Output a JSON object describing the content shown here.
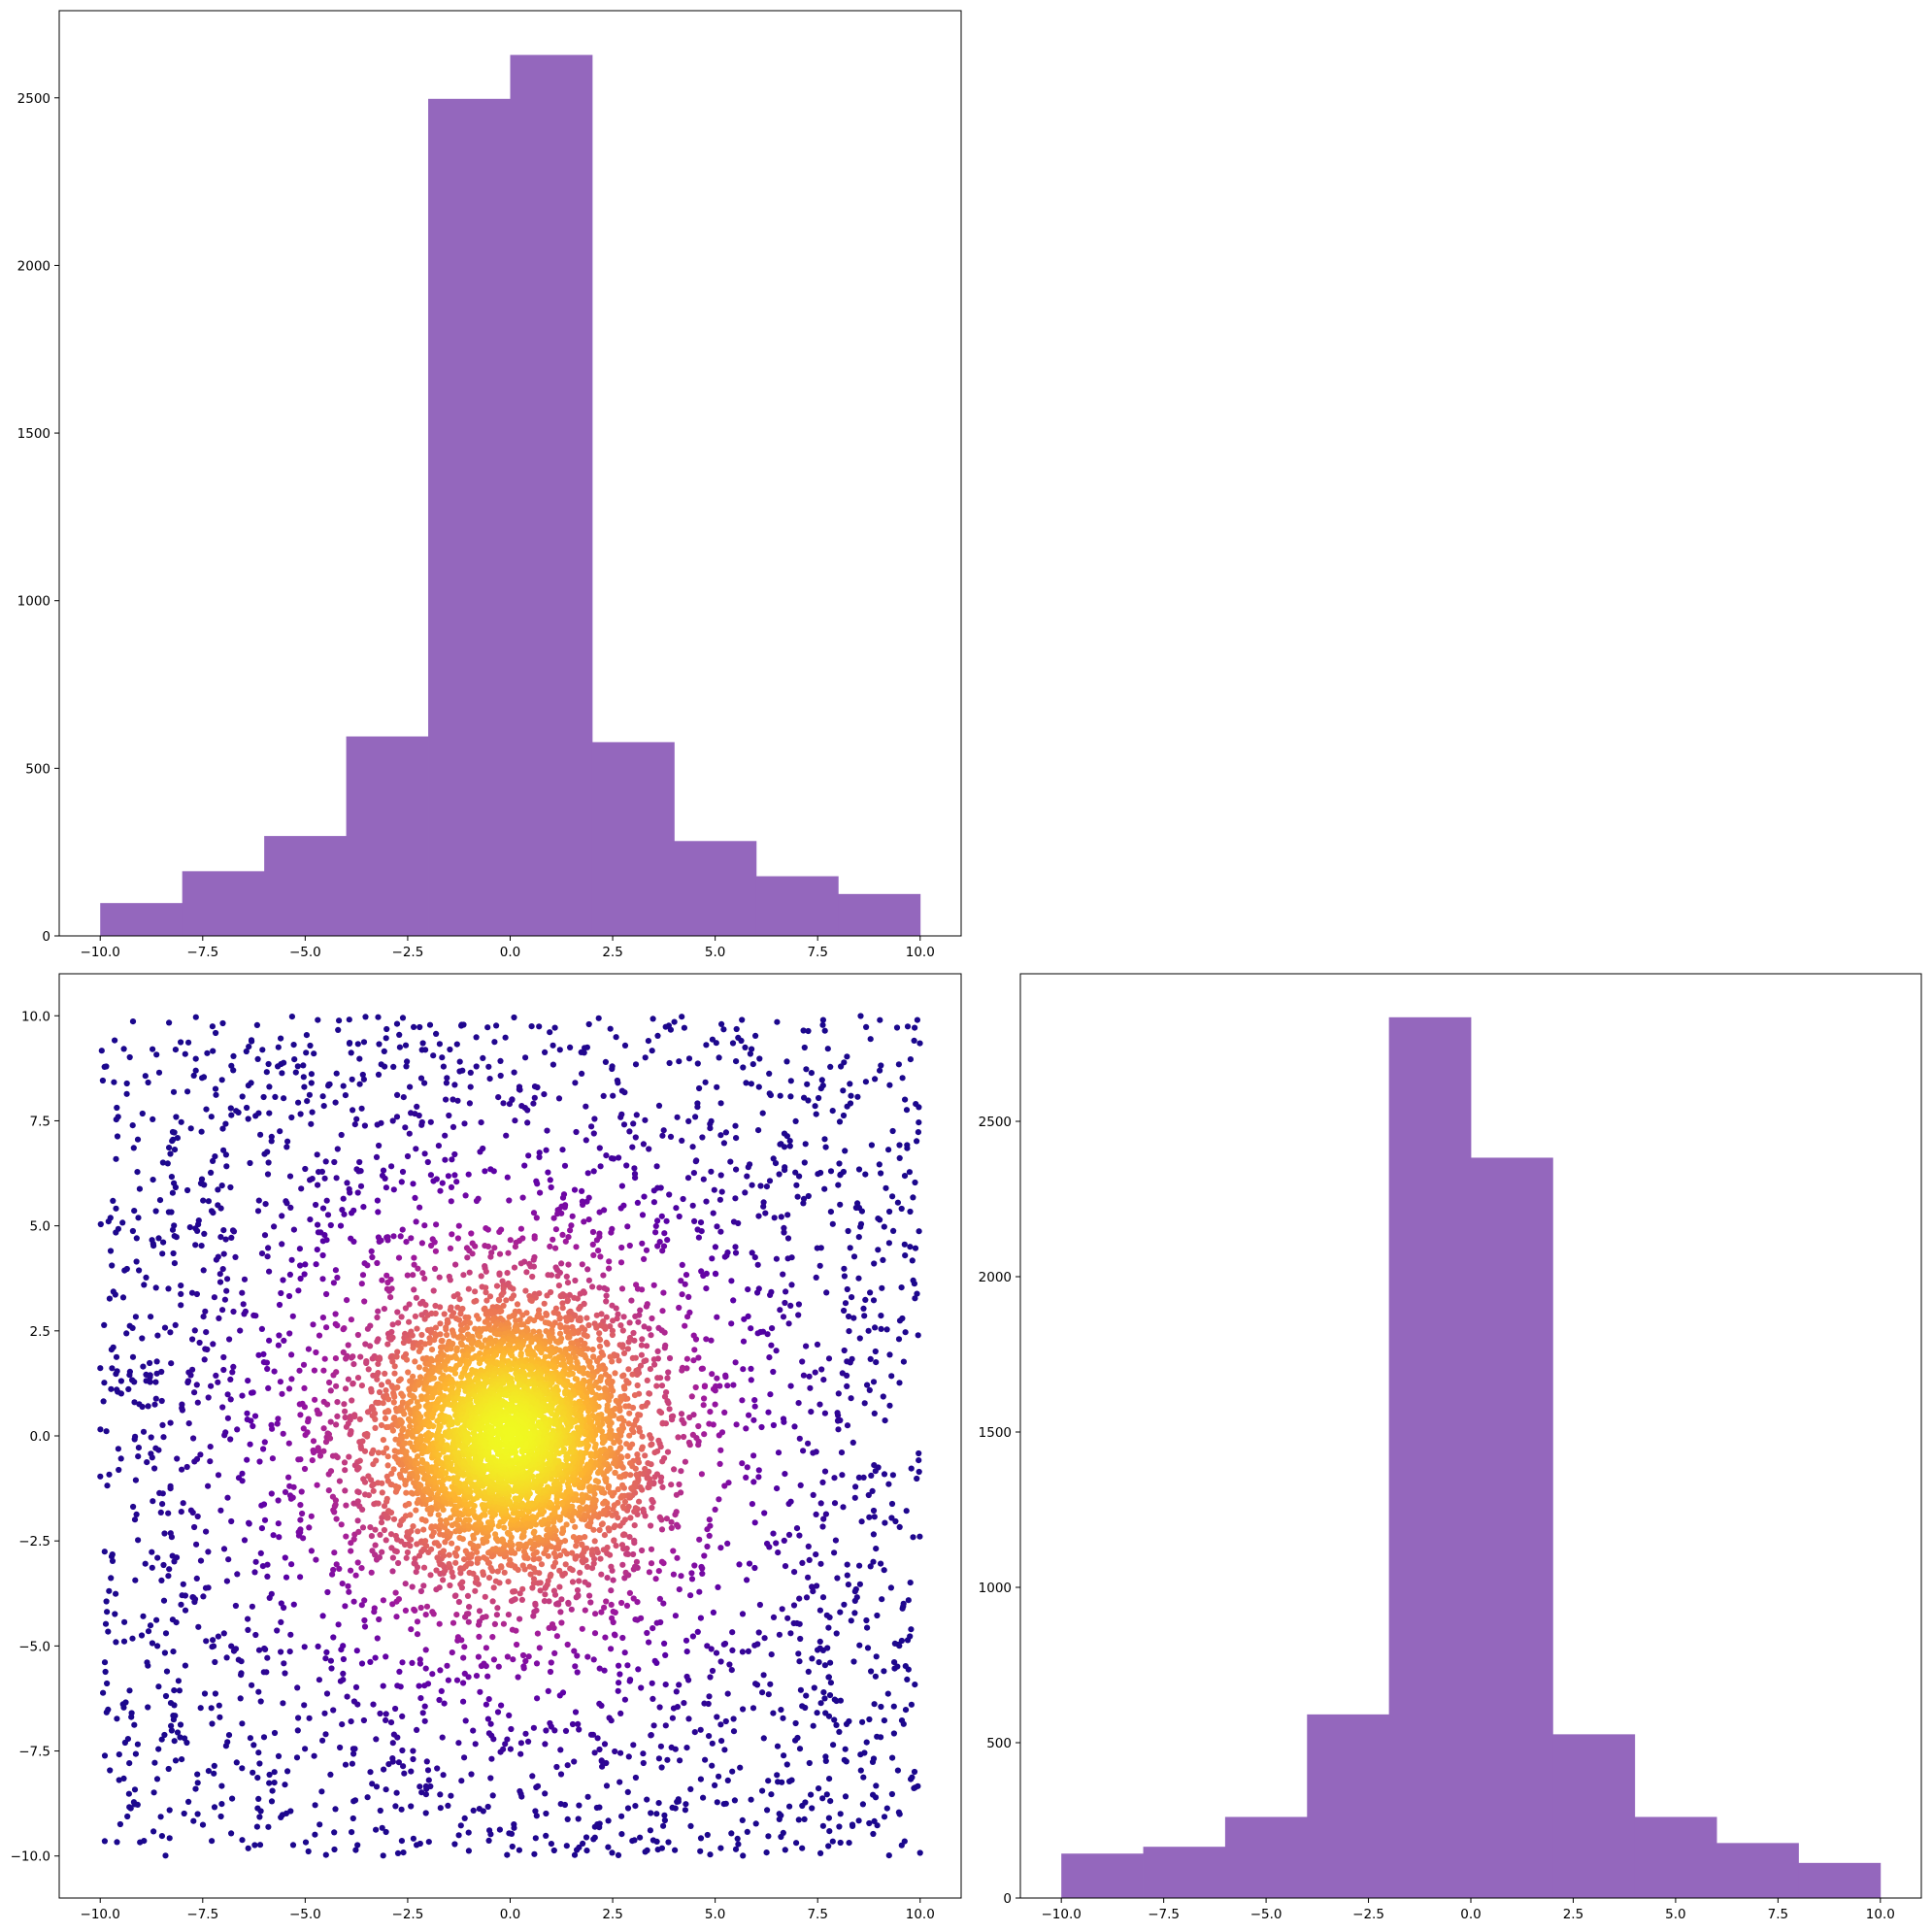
{
  "figure": {
    "background": "#ffffff",
    "bar_color": "#9467bd",
    "colormap": "plasma",
    "colormap_stops": [
      "#0d0887",
      "#5c01a6",
      "#9c179e",
      "#cc4778",
      "#ed7953",
      "#fdb42f",
      "#f0f921"
    ]
  },
  "chart_data": [
    {
      "id": "hist-x",
      "type": "bar",
      "subtype": "histogram",
      "bin_edges": [
        -10,
        -8,
        -6,
        -4,
        -2,
        0,
        2,
        4,
        6,
        8,
        10
      ],
      "values": [
        98,
        193,
        298,
        595,
        2497,
        2628,
        578,
        283,
        178,
        125
      ],
      "xlim": [
        -11,
        11
      ],
      "ylim": [
        0,
        2760
      ],
      "xticks": [
        -10,
        -7.5,
        -5,
        -2.5,
        0,
        2.5,
        5,
        7.5,
        10
      ],
      "xtick_labels": [
        "−10.0",
        "−7.5",
        "−5.0",
        "−2.5",
        "0.0",
        "2.5",
        "5.0",
        "7.5",
        "10.0"
      ],
      "yticks": [
        0,
        500,
        1000,
        1500,
        2000,
        2500
      ],
      "ytick_labels": [
        "0",
        "500",
        "1000",
        "1500",
        "2000",
        "2500"
      ],
      "grid": false,
      "title": "",
      "xlabel": "",
      "ylabel": ""
    },
    {
      "id": "scatter-xy",
      "type": "scatter",
      "description_of_points": "about 7500 points: dense Gaussian core centred at (0, 0) plus uniform background over [-10, 10] x [-10, 10], coloured by point density (plasma colormap)",
      "core": {
        "center": [
          0,
          0
        ],
        "std": 1.6
      },
      "background_range": [
        -10,
        10
      ],
      "xlim": [
        -11,
        11
      ],
      "ylim": [
        -11,
        11
      ],
      "xticks": [
        -10,
        -7.5,
        -5,
        -2.5,
        0,
        2.5,
        5,
        7.5,
        10
      ],
      "xtick_labels": [
        "−10.0",
        "−7.5",
        "−5.0",
        "−2.5",
        "0.0",
        "2.5",
        "5.0",
        "7.5",
        "10.0"
      ],
      "yticks": [
        -10,
        -7.5,
        -5,
        -2.5,
        0,
        2.5,
        5,
        7.5,
        10
      ],
      "ytick_labels": [
        "−10.0",
        "−7.5",
        "−5.0",
        "−2.5",
        "0.0",
        "2.5",
        "5.0",
        "7.5",
        "10.0"
      ],
      "grid": false,
      "title": "",
      "xlabel": "",
      "ylabel": ""
    },
    {
      "id": "hist-y",
      "type": "bar",
      "subtype": "histogram",
      "bin_edges": [
        -10,
        -8,
        -6,
        -4,
        -2,
        0,
        2,
        4,
        6,
        8,
        10
      ],
      "values": [
        143,
        165,
        261,
        591,
        2835,
        2383,
        527,
        261,
        177,
        113
      ],
      "xlim": [
        -11,
        11
      ],
      "ylim": [
        0,
        2975
      ],
      "xticks": [
        -10,
        -7.5,
        -5,
        -2.5,
        0,
        2.5,
        5,
        7.5,
        10
      ],
      "xtick_labels": [
        "−10.0",
        "−7.5",
        "−5.0",
        "−2.5",
        "0.0",
        "2.5",
        "5.0",
        "7.5",
        "10.0"
      ],
      "yticks": [
        0,
        500,
        1000,
        1500,
        2000,
        2500
      ],
      "ytick_labels": [
        "0",
        "500",
        "1000",
        "1500",
        "2000",
        "2500"
      ],
      "grid": false,
      "title": "",
      "xlabel": "",
      "ylabel": ""
    }
  ]
}
